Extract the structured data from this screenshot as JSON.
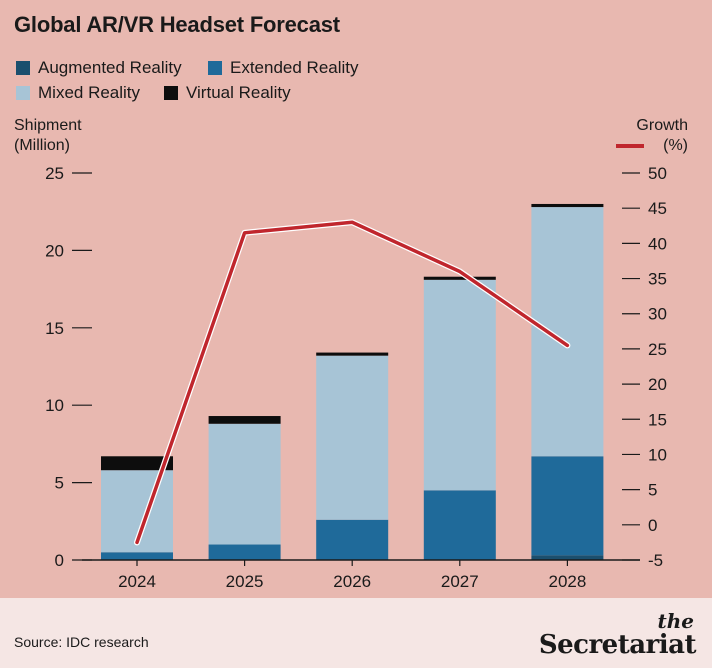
{
  "title": "Global AR/VR Headset Forecast",
  "legend": [
    {
      "label": "Augmented Reality",
      "color": "#1b4f6e"
    },
    {
      "label": "Extended Reality",
      "color": "#1f6a9a"
    },
    {
      "label": "Mixed Reality",
      "color": "#a7c4d6"
    },
    {
      "label": "Virtual Reality",
      "color": "#0d0d0d"
    }
  ],
  "left_axis_title": "Shipment\n(Million)",
  "right_axis_title": "Growth\n(%)",
  "source": "Source: IDC research",
  "brand": {
    "the": "the",
    "name": "Secretariat"
  },
  "chart_data": {
    "type": "bar",
    "stacked": true,
    "categories": [
      "2024",
      "2025",
      "2026",
      "2027",
      "2028"
    ],
    "series": [
      {
        "name": "Augmented Reality",
        "color": "#1b4f6e",
        "values": [
          0.0,
          0.0,
          0.0,
          0.0,
          0.3
        ]
      },
      {
        "name": "Extended Reality",
        "color": "#1f6a9a",
        "values": [
          0.5,
          1.0,
          2.6,
          4.5,
          6.4
        ]
      },
      {
        "name": "Mixed Reality",
        "color": "#a7c4d6",
        "values": [
          5.3,
          7.8,
          10.6,
          13.6,
          16.1
        ]
      },
      {
        "name": "Virtual Reality",
        "color": "#0d0d0d",
        "values": [
          0.9,
          0.5,
          0.2,
          0.2,
          0.2
        ]
      }
    ],
    "ylim": [
      0,
      25
    ],
    "yticks": [
      0,
      5,
      10,
      15,
      20,
      25
    ],
    "line": {
      "name": "Growth",
      "color": "#c0262d",
      "values": [
        -2.5,
        41.5,
        43,
        36,
        25.5
      ]
    },
    "y2lim": [
      -5,
      50
    ],
    "y2ticks": [
      -5,
      0,
      5,
      10,
      15,
      20,
      25,
      30,
      35,
      40,
      45,
      50
    ],
    "grid": false,
    "legend_position": "top-left"
  }
}
